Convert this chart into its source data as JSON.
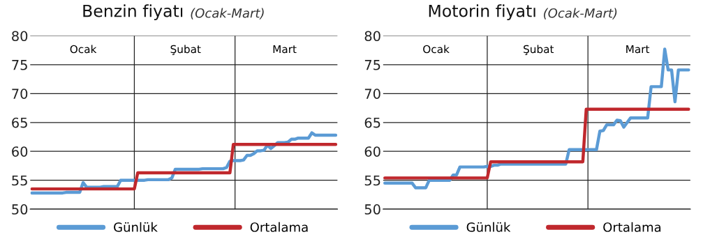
{
  "chart_data": [
    {
      "type": "line",
      "title": "Benzin fiyatı",
      "subtitle": "(Ocak-Mart)",
      "ylim": [
        50,
        80
      ],
      "yticks": [
        50,
        55,
        60,
        65,
        70,
        75,
        80
      ],
      "categories": [
        null,
        null,
        null,
        null,
        null,
        null,
        null,
        null,
        null,
        null,
        null,
        null,
        null,
        null,
        null,
        "Ocak",
        null,
        null,
        null,
        null,
        null,
        null,
        null,
        null,
        null,
        null,
        null,
        null,
        null,
        null,
        null,
        null,
        null,
        null,
        null,
        null,
        null,
        null,
        null,
        null,
        null,
        null,
        null,
        null,
        null,
        "Şubat",
        null,
        null,
        null,
        null,
        null,
        null,
        null,
        null,
        null,
        null,
        null,
        null,
        null,
        null,
        null,
        null,
        null,
        null,
        null,
        null,
        null,
        null,
        null,
        null,
        null,
        null,
        null,
        null,
        "Mart",
        null,
        null,
        null,
        null,
        null,
        null,
        null,
        null,
        null,
        null,
        null,
        null,
        null,
        null,
        null
      ],
      "grid": "y",
      "legend": "bottom",
      "series": [
        {
          "name": "Günlük",
          "color": "#5b9bd5",
          "values": [
            52.8,
            52.8,
            52.8,
            52.8,
            52.8,
            52.8,
            52.8,
            52.8,
            52.8,
            52.8,
            52.9,
            52.9,
            52.9,
            52.9,
            52.9,
            54.6,
            53.8,
            53.8,
            53.8,
            53.8,
            53.8,
            53.9,
            53.9,
            53.9,
            53.9,
            53.9,
            55.0,
            55.0,
            55.0,
            55.0,
            55.0,
            55.0,
            55.0,
            55.0,
            55.1,
            55.1,
            55.1,
            55.1,
            55.1,
            55.1,
            55.1,
            55.4,
            56.9,
            56.9,
            56.9,
            56.9,
            56.9,
            56.9,
            56.9,
            56.9,
            57.0,
            57.0,
            57.0,
            57.0,
            57.0,
            57.0,
            57.0,
            57.2,
            58.3,
            58.4,
            58.4,
            58.4,
            58.5,
            59.3,
            59.3,
            59.6,
            60.1,
            60.1,
            60.2,
            61.1,
            60.5,
            61.0,
            61.5,
            61.5,
            61.5,
            61.6,
            62.1,
            62.1,
            62.3,
            62.3,
            62.3,
            62.3,
            63.2,
            62.8,
            62.8,
            62.8,
            62.8,
            62.8,
            62.8,
            62.8
          ]
        },
        {
          "name": "Ortalama",
          "color": "#c0282d",
          "values": [
            53.5,
            53.5,
            53.5,
            53.5,
            53.5,
            53.5,
            53.5,
            53.5,
            53.5,
            53.5,
            53.5,
            53.5,
            53.5,
            53.5,
            53.5,
            53.5,
            53.5,
            53.5,
            53.5,
            53.5,
            53.5,
            53.5,
            53.5,
            53.5,
            53.5,
            53.5,
            53.5,
            53.5,
            53.5,
            53.5,
            53.5,
            56.3,
            56.3,
            56.3,
            56.3,
            56.3,
            56.3,
            56.3,
            56.3,
            56.3,
            56.3,
            56.3,
            56.3,
            56.3,
            56.3,
            56.3,
            56.3,
            56.3,
            56.3,
            56.3,
            56.3,
            56.3,
            56.3,
            56.3,
            56.3,
            56.3,
            56.3,
            56.3,
            56.3,
            61.2,
            61.2,
            61.2,
            61.2,
            61.2,
            61.2,
            61.2,
            61.2,
            61.2,
            61.2,
            61.2,
            61.2,
            61.2,
            61.2,
            61.2,
            61.2,
            61.2,
            61.2,
            61.2,
            61.2,
            61.2,
            61.2,
            61.2,
            61.2,
            61.2,
            61.2,
            61.2,
            61.2,
            61.2,
            61.2,
            61.2
          ]
        }
      ]
    },
    {
      "type": "line",
      "title": "Motorin fiyatı",
      "subtitle": "(Ocak-Mart)",
      "ylim": [
        50,
        80
      ],
      "yticks": [
        50,
        55,
        60,
        65,
        70,
        75,
        80
      ],
      "categories": [
        null,
        null,
        null,
        null,
        null,
        null,
        null,
        null,
        null,
        null,
        null,
        null,
        null,
        null,
        null,
        "Ocak",
        null,
        null,
        null,
        null,
        null,
        null,
        null,
        null,
        null,
        null,
        null,
        null,
        null,
        null,
        null,
        null,
        null,
        null,
        null,
        null,
        null,
        null,
        null,
        null,
        null,
        null,
        null,
        null,
        null,
        "Şubat",
        null,
        null,
        null,
        null,
        null,
        null,
        null,
        null,
        null,
        null,
        null,
        null,
        null,
        null,
        null,
        null,
        null,
        null,
        null,
        null,
        null,
        null,
        null,
        null,
        null,
        null,
        null,
        null,
        "Mart",
        null,
        null,
        null,
        null,
        null,
        null,
        null,
        null,
        null,
        null,
        null,
        null,
        null,
        null,
        null
      ],
      "grid": "y",
      "legend": "bottom",
      "series": [
        {
          "name": "Günlük",
          "color": "#5b9bd5",
          "values": [
            54.5,
            54.5,
            54.5,
            54.5,
            54.5,
            54.5,
            54.5,
            54.5,
            54.5,
            53.7,
            53.7,
            53.7,
            53.7,
            55.0,
            55.0,
            55.0,
            55.0,
            55.0,
            55.0,
            55.0,
            55.9,
            55.9,
            57.3,
            57.3,
            57.3,
            57.3,
            57.3,
            57.3,
            57.3,
            57.3,
            57.4,
            57.4,
            57.6,
            57.6,
            57.8,
            57.8,
            57.8,
            57.8,
            57.8,
            57.8,
            57.8,
            57.8,
            57.8,
            57.8,
            57.8,
            57.8,
            57.8,
            57.8,
            57.8,
            57.8,
            57.8,
            57.8,
            57.8,
            57.8,
            60.3,
            60.3,
            60.3,
            60.3,
            60.3,
            60.3,
            60.3,
            60.3,
            60.3,
            63.5,
            63.6,
            64.6,
            64.6,
            64.6,
            65.4,
            65.3,
            64.2,
            65.0,
            65.8,
            65.8,
            65.8,
            65.8,
            65.8,
            65.8,
            71.2,
            71.2,
            71.2,
            71.2,
            77.7,
            74.1,
            74.1,
            68.6,
            74.1,
            74.1,
            74.1,
            74.1
          ]
        },
        {
          "name": "Ortalama",
          "color": "#c0282d",
          "values": [
            55.4,
            55.4,
            55.4,
            55.4,
            55.4,
            55.4,
            55.4,
            55.4,
            55.4,
            55.4,
            55.4,
            55.4,
            55.4,
            55.4,
            55.4,
            55.4,
            55.4,
            55.4,
            55.4,
            55.4,
            55.4,
            55.4,
            55.4,
            55.4,
            55.4,
            55.4,
            55.4,
            55.4,
            55.4,
            55.4,
            55.4,
            58.2,
            58.2,
            58.2,
            58.2,
            58.2,
            58.2,
            58.2,
            58.2,
            58.2,
            58.2,
            58.2,
            58.2,
            58.2,
            58.2,
            58.2,
            58.2,
            58.2,
            58.2,
            58.2,
            58.2,
            58.2,
            58.2,
            58.2,
            58.2,
            58.2,
            58.2,
            58.2,
            58.2,
            67.3,
            67.3,
            67.3,
            67.3,
            67.3,
            67.3,
            67.3,
            67.3,
            67.3,
            67.3,
            67.3,
            67.3,
            67.3,
            67.3,
            67.3,
            67.3,
            67.3,
            67.3,
            67.3,
            67.3,
            67.3,
            67.3,
            67.3,
            67.3,
            67.3,
            67.3,
            67.3,
            67.3,
            67.3,
            67.3,
            67.3
          ]
        }
      ]
    }
  ]
}
